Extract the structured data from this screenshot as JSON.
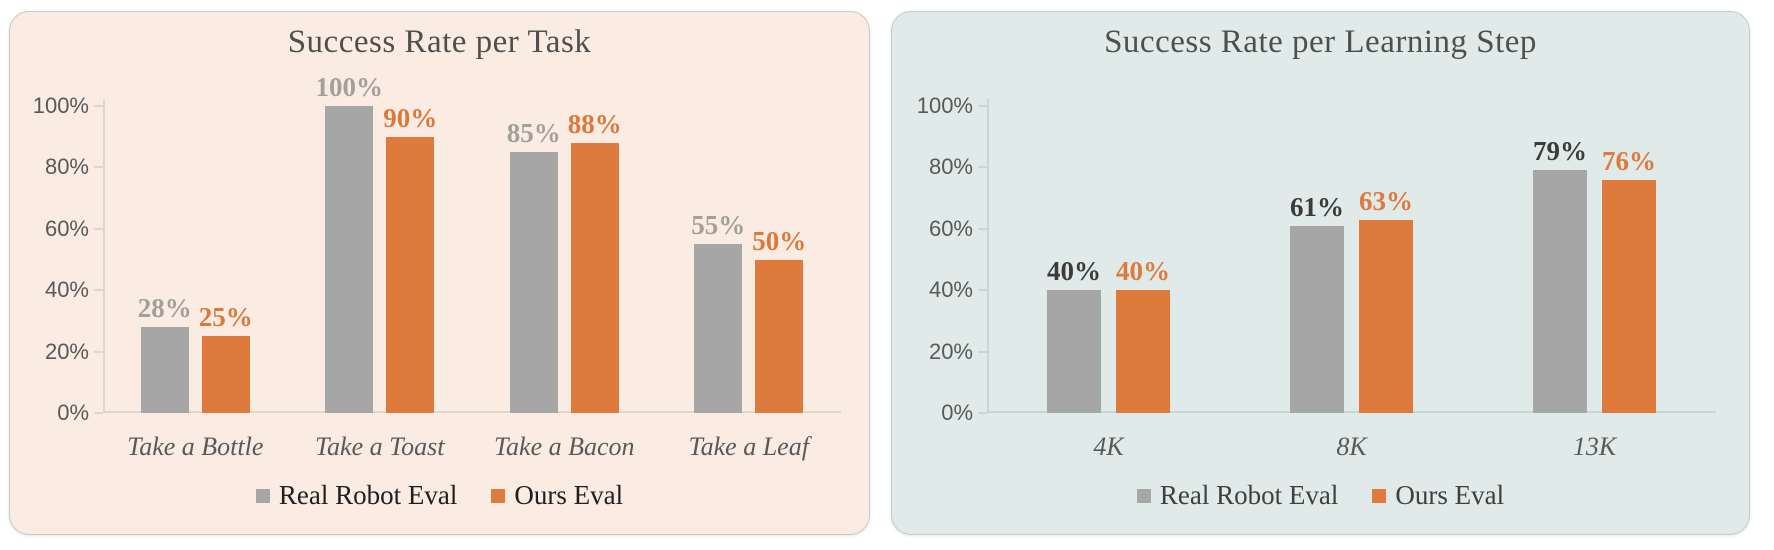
{
  "page_background": "#ffffff",
  "chart_data": [
    {
      "type": "bar",
      "title": "Success Rate per Task",
      "categories": [
        "Take a Bottle",
        "Take a Toast",
        "Take a Bacon",
        "Take a Leaf"
      ],
      "series": [
        {
          "name": "Real Robot Eval",
          "color": "#a6a6a6",
          "label_color": "#a3a09b",
          "values": [
            28,
            100,
            85,
            55
          ],
          "value_labels": [
            "28%",
            "100%",
            "85%",
            "55%"
          ]
        },
        {
          "name": "Ours Eval",
          "color": "#de7b3c",
          "label_color": "#d97a3c",
          "values": [
            25,
            90,
            88,
            50
          ],
          "value_labels": [
            "25%",
            "90%",
            "88%",
            "50%"
          ]
        }
      ],
      "xlabel": "",
      "ylabel": "",
      "ylim": [
        0,
        100
      ],
      "y_ticks": [
        "100%",
        "80%",
        "60%",
        "40%",
        "20%",
        "0%"
      ],
      "grid": false,
      "legend_position": "bottom",
      "panel_background": "#faece3",
      "axis_color": "#ded7cd",
      "tick_label_color": "#595959",
      "category_label_color": "#595959",
      "title_color": "#4f4f4f",
      "legend_text_color": "#1f1f1f"
    },
    {
      "type": "bar",
      "title": "Success Rate per Learning Step",
      "categories": [
        "4K",
        "8K",
        "13K"
      ],
      "series": [
        {
          "name": "Real Robot Eval",
          "color": "#a6a6a6",
          "label_color": "#3b3b3b",
          "values": [
            40,
            61,
            79
          ],
          "value_labels": [
            "40%",
            "61%",
            "79%"
          ]
        },
        {
          "name": "Ours Eval",
          "color": "#de7b3c",
          "label_color": "#de7b3c",
          "values": [
            40,
            63,
            76
          ],
          "value_labels": [
            "40%",
            "63%",
            "76%"
          ]
        }
      ],
      "xlabel": "",
      "ylabel": "",
      "ylim": [
        0,
        100
      ],
      "y_ticks": [
        "100%",
        "80%",
        "60%",
        "40%",
        "20%",
        "0%"
      ],
      "grid": false,
      "legend_position": "bottom",
      "panel_background": "#e0eae8",
      "axis_color": "#c9d6d3",
      "tick_label_color": "#595959",
      "category_label_color": "#595959",
      "title_color": "#4f4f4f",
      "legend_text_color": "#3f3f3f"
    }
  ]
}
